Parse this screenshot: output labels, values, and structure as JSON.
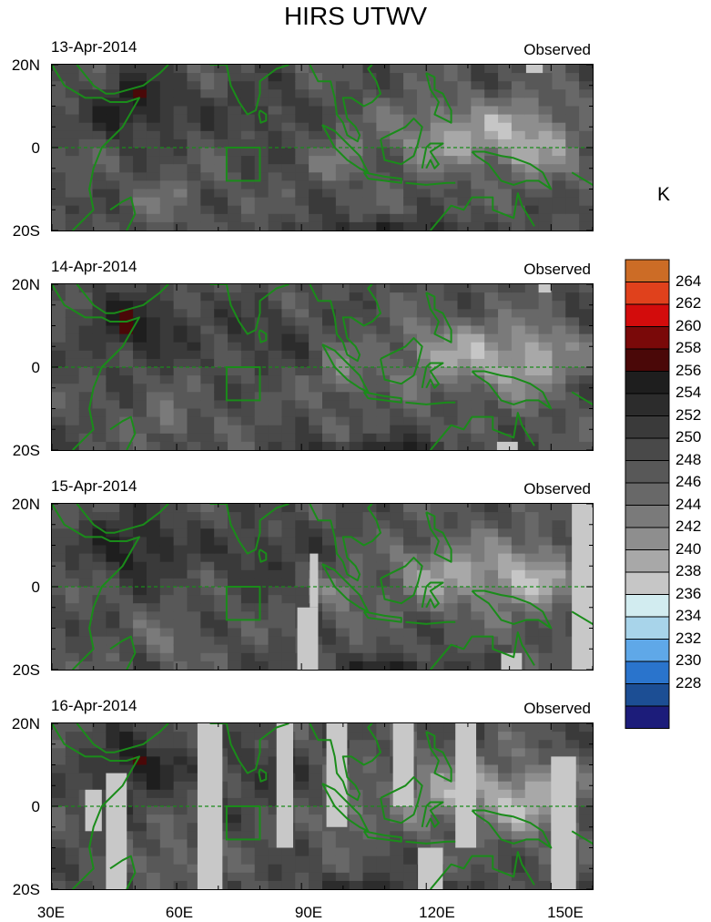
{
  "title": "HIRS UTWV",
  "unit_label": "K",
  "panels": [
    {
      "date": "13-Apr-2014",
      "status": "Observed"
    },
    {
      "date": "14-Apr-2014",
      "status": "Observed"
    },
    {
      "date": "15-Apr-2014",
      "status": "Observed"
    },
    {
      "date": "16-Apr-2014",
      "status": "Observed"
    }
  ],
  "lat_labels": [
    "20N",
    "0",
    "20S"
  ],
  "lon_labels": [
    "30E",
    "60E",
    "90E",
    "120E",
    "150E"
  ],
  "colorbar": {
    "labels": [
      "264",
      "262",
      "260",
      "258",
      "256",
      "254",
      "252",
      "250",
      "248",
      "246",
      "244",
      "242",
      "240",
      "238",
      "236",
      "234",
      "232",
      "230",
      "228"
    ],
    "colors": [
      "#cc6c26",
      "#e0411c",
      "#d30c0c",
      "#7a0909",
      "#4a0808",
      "#1e1e1e",
      "#2c2c2c",
      "#3a3a3a",
      "#494949",
      "#585858",
      "#686868",
      "#7a7a7a",
      "#8e8e8e",
      "#a8a8a8",
      "#c6c6c6",
      "#d2ecf0",
      "#a8d4ea",
      "#5fa8e8",
      "#2a74cc",
      "#1c4e94",
      "#1c1c7a"
    ]
  },
  "colors": {
    "coastline": "#1a8c1a",
    "equator": "#1a8c1a"
  }
}
